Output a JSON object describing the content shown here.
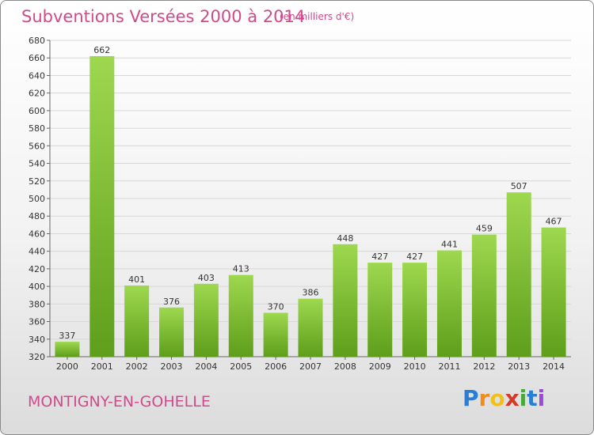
{
  "chart_data": {
    "type": "bar",
    "title": "Subventions Versées 2000 à 2014",
    "subtitle": "(en milliers d'€)",
    "categories": [
      "2000",
      "2001",
      "2002",
      "2003",
      "2004",
      "2005",
      "2006",
      "2007",
      "2008",
      "2009",
      "2010",
      "2011",
      "2012",
      "2013",
      "2014"
    ],
    "values": [
      337,
      662,
      401,
      376,
      403,
      413,
      370,
      386,
      448,
      427,
      427,
      441,
      459,
      507,
      467
    ],
    "ylim": [
      320,
      680
    ],
    "yticks": [
      320,
      340,
      360,
      380,
      400,
      420,
      440,
      460,
      480,
      500,
      520,
      540,
      560,
      580,
      600,
      620,
      640,
      660,
      680
    ],
    "grid": true,
    "colors": {
      "bar_top": "#9ed84f",
      "bar_bottom": "#5e9e1a",
      "accent": "#d04a8c"
    }
  },
  "footer": {
    "city": "MONTIGNY-EN-GOHELLE",
    "logo_letters": [
      "P",
      "r",
      "o",
      "x",
      "i",
      "t",
      "i"
    ],
    "logo_colors": [
      "#2a7fd4",
      "#f28b1c",
      "#f2c01c",
      "#d43a2a",
      "#4aa83a",
      "#2a7fd4",
      "#9a4ad4"
    ]
  }
}
